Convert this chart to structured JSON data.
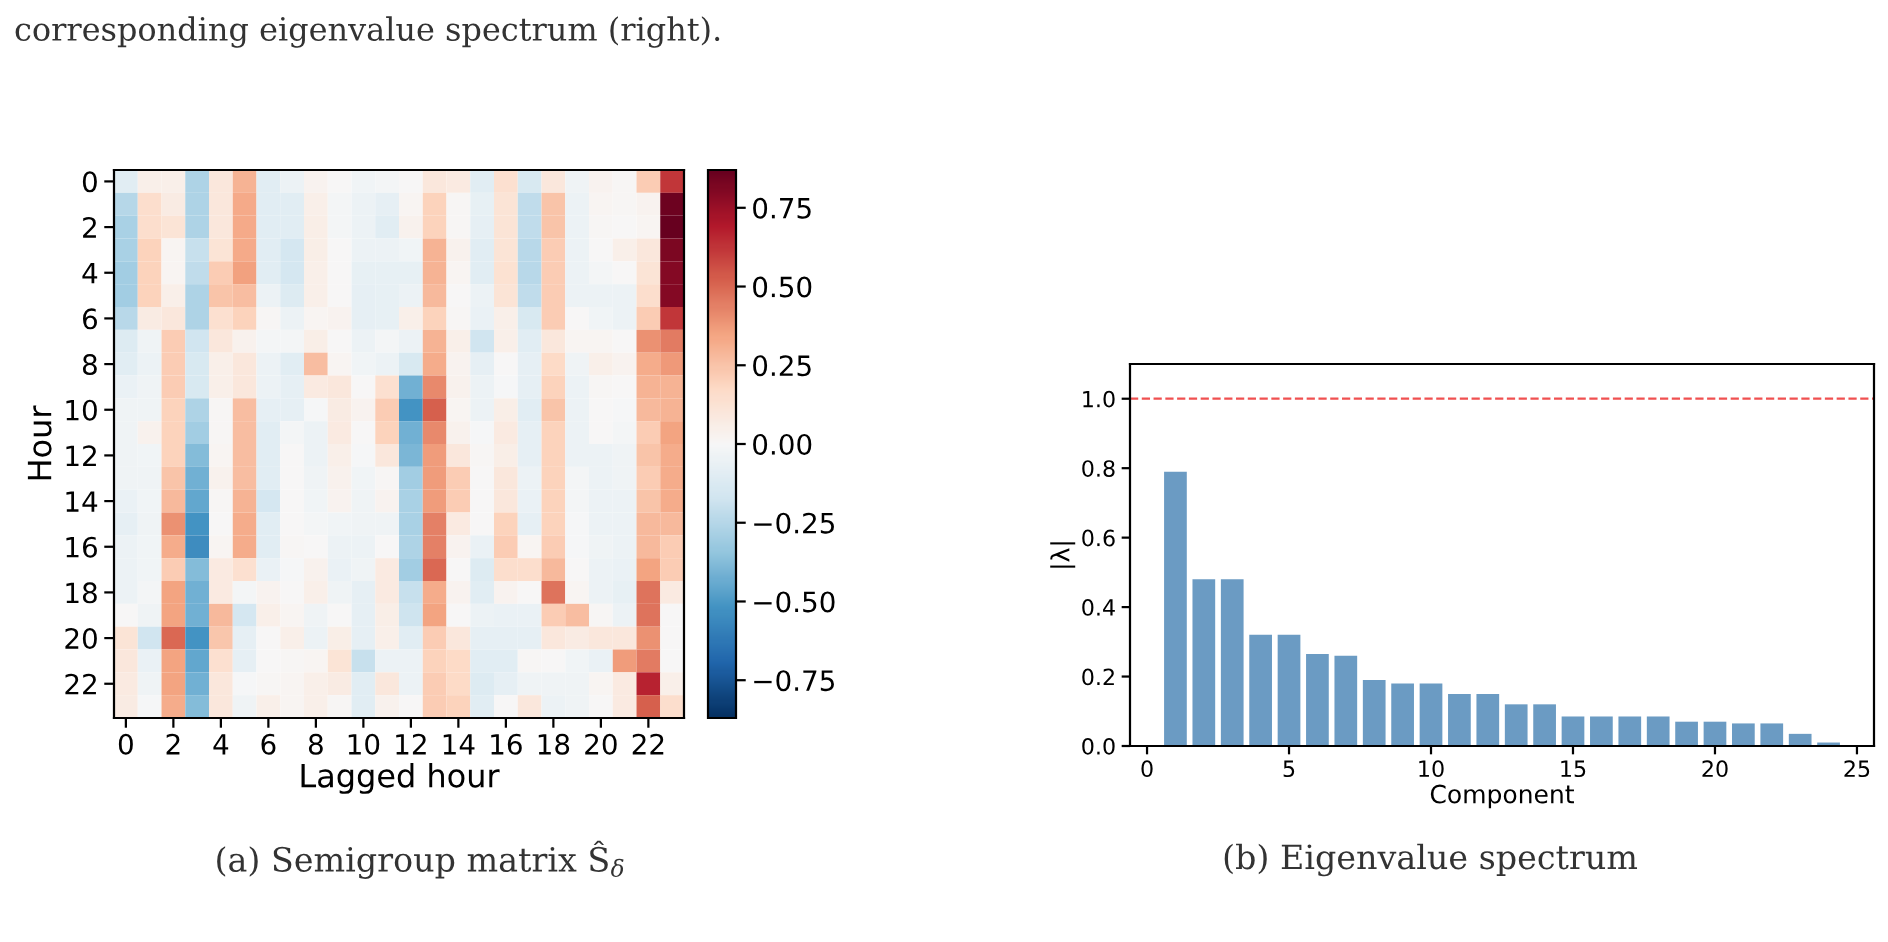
{
  "chart_data": [
    {
      "type": "heatmap",
      "xlabel": "Lagged hour",
      "ylabel": "Hour",
      "categories": [
        "0",
        null,
        "2",
        null,
        "4",
        null,
        "6",
        null,
        "8",
        null,
        "10",
        null,
        "12",
        null,
        "14",
        null,
        "16",
        null,
        "18",
        null,
        "20",
        null,
        "22",
        null
      ],
      "y_categories": [
        "0",
        null,
        "2",
        null,
        "4",
        null,
        "6",
        null,
        "8",
        null,
        "10",
        null,
        "12",
        null,
        "14",
        null,
        "16",
        null,
        "18",
        null,
        "20",
        null,
        "22",
        null
      ],
      "cells": [
        [
          -0.1,
          0.05,
          0.05,
          -0.27,
          0.1,
          0.3,
          -0.1,
          -0.05,
          0.03,
          0,
          -0.03,
          -0.02,
          0,
          0.1,
          0.08,
          -0.1,
          0.14,
          -0.14,
          0.1,
          -0.04,
          0.03,
          0.01,
          0.22,
          0.62
        ],
        [
          -0.25,
          0.15,
          0.07,
          -0.27,
          0.1,
          0.33,
          -0.1,
          -0.1,
          0.05,
          -0.02,
          -0.05,
          -0.08,
          0.02,
          0.2,
          0.01,
          -0.07,
          0.12,
          -0.22,
          0.25,
          -0.05,
          0.02,
          0.01,
          0.03,
          0.85
        ],
        [
          -0.28,
          0.15,
          0.12,
          -0.27,
          0.1,
          0.33,
          -0.1,
          -0.1,
          0.06,
          -0.02,
          -0.05,
          -0.1,
          0.04,
          0.2,
          0.01,
          -0.08,
          0.12,
          -0.22,
          0.25,
          -0.05,
          0.01,
          0,
          0.02,
          0.87
        ],
        [
          -0.28,
          0.2,
          0.02,
          -0.2,
          0.12,
          0.33,
          -0.1,
          -0.15,
          0.06,
          0,
          -0.05,
          -0.05,
          -0.03,
          0.3,
          0.04,
          -0.1,
          0.12,
          -0.24,
          0.22,
          -0.05,
          0,
          0.05,
          0.1,
          0.82
        ],
        [
          -0.3,
          0.2,
          0.02,
          -0.22,
          0.22,
          0.36,
          -0.1,
          -0.15,
          0.05,
          0,
          -0.07,
          -0.07,
          -0.07,
          0.3,
          0.02,
          -0.1,
          0.13,
          -0.24,
          0.22,
          -0.05,
          -0.02,
          0,
          0.12,
          0.8
        ],
        [
          -0.3,
          0.2,
          0.05,
          -0.27,
          0.25,
          0.27,
          -0.05,
          -0.12,
          0.05,
          0,
          -0.08,
          -0.07,
          -0.05,
          0.28,
          0,
          -0.05,
          0.12,
          -0.22,
          0.22,
          -0.05,
          -0.05,
          -0.05,
          0.15,
          0.8
        ],
        [
          -0.24,
          0.07,
          0.1,
          -0.27,
          0.14,
          0.2,
          0.01,
          -0.05,
          0.02,
          0.03,
          -0.08,
          -0.07,
          0.05,
          0.2,
          0.01,
          -0.06,
          0.05,
          -0.14,
          0.22,
          0,
          -0.03,
          -0.05,
          0.22,
          0.62
        ],
        [
          -0.12,
          -0.04,
          0.22,
          -0.17,
          0.1,
          0.04,
          -0.02,
          -0.02,
          0.06,
          0,
          -0.05,
          -0.02,
          -0.05,
          0.3,
          0.05,
          -0.17,
          0.05,
          -0.1,
          0.1,
          0.02,
          0.02,
          0,
          0.4,
          0.45
        ],
        [
          -0.1,
          -0.05,
          0.22,
          -0.14,
          0.05,
          0.1,
          -0.05,
          -0.1,
          0.27,
          0.02,
          -0.03,
          -0.05,
          -0.14,
          0.32,
          0.03,
          -0.08,
          0,
          -0.08,
          0.17,
          -0.04,
          0.05,
          0.03,
          0.32,
          0.38
        ],
        [
          -0.06,
          -0.04,
          0.22,
          -0.14,
          0.05,
          0.1,
          -0.05,
          -0.08,
          0.08,
          0.1,
          0,
          0.14,
          -0.42,
          0.42,
          0.04,
          -0.05,
          -0.01,
          -0.08,
          0.2,
          -0.05,
          0.01,
          0,
          0.3,
          0.3
        ],
        [
          -0.04,
          -0.04,
          0.2,
          -0.27,
          0.01,
          0.27,
          -0.08,
          -0.08,
          -0.01,
          0.07,
          0.03,
          0.22,
          -0.52,
          0.52,
          0.02,
          -0.05,
          0.06,
          -0.1,
          0.25,
          -0.05,
          0,
          -0.01,
          0.28,
          0.3
        ],
        [
          -0.04,
          0.04,
          0.2,
          -0.3,
          0.01,
          0.27,
          -0.1,
          -0.02,
          -0.05,
          0.08,
          0,
          0.2,
          -0.42,
          0.42,
          0.04,
          -0.01,
          0.08,
          -0.08,
          0.2,
          -0.05,
          0,
          -0.02,
          0.22,
          0.35
        ],
        [
          -0.04,
          -0.03,
          0.2,
          -0.38,
          0.02,
          0.27,
          -0.1,
          0,
          -0.05,
          0.05,
          -0.01,
          0.1,
          -0.4,
          0.37,
          0.1,
          0.01,
          0.06,
          -0.08,
          0.2,
          -0.05,
          -0.05,
          -0.04,
          0.25,
          0.32
        ],
        [
          -0.04,
          -0.04,
          0.25,
          -0.42,
          0.04,
          0.27,
          -0.1,
          0,
          -0.04,
          0.04,
          -0.03,
          0.01,
          -0.3,
          0.37,
          0.22,
          0,
          0.1,
          -0.05,
          0.2,
          -0.02,
          -0.05,
          -0.04,
          0.22,
          0.32
        ],
        [
          -0.06,
          -0.03,
          0.28,
          -0.45,
          0.01,
          0.3,
          -0.15,
          0,
          -0.03,
          0.03,
          -0.04,
          0.03,
          -0.28,
          0.37,
          0.22,
          0,
          0.1,
          -0.06,
          0.2,
          -0.02,
          -0.05,
          -0.05,
          0.25,
          0.32
        ],
        [
          -0.08,
          -0.04,
          0.4,
          -0.52,
          0,
          0.32,
          -0.1,
          0,
          -0.02,
          -0.03,
          -0.04,
          -0.04,
          -0.28,
          0.44,
          0.08,
          0,
          0.2,
          -0.08,
          0.2,
          -0.01,
          -0.05,
          -0.05,
          0.28,
          0.28
        ],
        [
          -0.05,
          -0.03,
          0.32,
          -0.55,
          0.02,
          0.32,
          -0.1,
          0.01,
          0,
          -0.05,
          -0.05,
          0,
          -0.27,
          0.44,
          0.03,
          -0.06,
          0.22,
          0.02,
          0.22,
          -0.01,
          -0.04,
          -0.05,
          0.28,
          0.22
        ],
        [
          -0.05,
          -0.03,
          0.22,
          -0.38,
          0.08,
          0.14,
          -0.06,
          -0.01,
          0.04,
          -0.06,
          -0.04,
          0.08,
          -0.3,
          0.5,
          0,
          -0.12,
          0.15,
          0.15,
          0.28,
          0,
          -0.05,
          -0.06,
          0.35,
          0.22
        ],
        [
          -0.05,
          -0.02,
          0.35,
          -0.42,
          0.08,
          -0.02,
          0.03,
          0,
          0.05,
          -0.04,
          -0.08,
          0.08,
          -0.2,
          0.32,
          0.03,
          -0.1,
          0.03,
          0,
          0.47,
          0.02,
          -0.05,
          -0.07,
          0.47,
          0.08
        ],
        [
          0,
          -0.04,
          0.35,
          -0.42,
          0.28,
          -0.15,
          0.05,
          0.02,
          -0.04,
          0,
          -0.08,
          0.06,
          -0.18,
          0.35,
          0,
          -0.05,
          -0.06,
          -0.06,
          0.22,
          0.27,
          0.01,
          -0.05,
          0.47,
          0
        ],
        [
          0.12,
          -0.17,
          0.5,
          -0.52,
          0.24,
          -0.08,
          0,
          0.05,
          -0.05,
          0.06,
          -0.08,
          0.05,
          -0.1,
          0.22,
          0.1,
          -0.08,
          -0.08,
          -0.08,
          0.1,
          0.07,
          0.1,
          0.1,
          0.4,
          0
        ],
        [
          0.1,
          -0.06,
          0.35,
          -0.45,
          0.14,
          -0.08,
          0,
          0.01,
          0.02,
          0.12,
          -0.2,
          -0.05,
          -0.05,
          0.2,
          0.17,
          -0.1,
          -0.1,
          0.01,
          0,
          -0.03,
          -0.06,
          0.37,
          0.45,
          0
        ],
        [
          0.08,
          -0.04,
          0.35,
          -0.42,
          0.1,
          -0.01,
          0.01,
          0.02,
          0.05,
          0.07,
          -0.1,
          0.1,
          -0.05,
          0.22,
          0.17,
          -0.12,
          -0.08,
          -0.04,
          -0.04,
          -0.04,
          0.02,
          0.08,
          0.67,
          0.05
        ],
        [
          0.07,
          -0.01,
          0.32,
          -0.38,
          0.1,
          -0.04,
          0.05,
          0.02,
          0.05,
          0.01,
          -0.1,
          0.04,
          0,
          0.22,
          0.2,
          -0.1,
          0,
          0.1,
          -0.05,
          -0.04,
          0,
          0.08,
          0.52,
          0.15
        ]
      ],
      "clim": [
        -0.87,
        0.87
      ],
      "cticks": [
        {
          "value": -0.75,
          "label": "−0.75"
        },
        {
          "value": -0.5,
          "label": "−0.50"
        },
        {
          "value": -0.25,
          "label": "−0.25"
        },
        {
          "value": 0,
          "label": "0.00"
        },
        {
          "value": 0.25,
          "label": "0.25"
        },
        {
          "value": 0.5,
          "label": "0.50"
        },
        {
          "value": 0.75,
          "label": "0.75"
        }
      ],
      "annotations": [
        "corresponding eigenvalue spectrum (right).",
        "(a) Semigroup matrix Ŝ$_{δ}$"
      ]
    },
    {
      "type": "bar",
      "xlabel": "Component",
      "ylabel": "|λ|",
      "x": [
        1,
        2,
        3,
        4,
        5,
        6,
        7,
        8,
        9,
        10,
        11,
        12,
        13,
        14,
        15,
        16,
        17,
        18,
        19,
        20,
        21,
        22,
        23,
        24
      ],
      "values": [
        0.79,
        0.48,
        0.48,
        0.32,
        0.32,
        0.265,
        0.26,
        0.19,
        0.18,
        0.18,
        0.15,
        0.15,
        0.12,
        0.12,
        0.085,
        0.085,
        0.085,
        0.085,
        0.07,
        0.07,
        0.065,
        0.065,
        0.035,
        0.01
      ],
      "color": "#6b9bc3",
      "xlim": [
        -0.6,
        25.6
      ],
      "xticks": [
        0,
        5,
        10,
        15,
        20,
        25
      ],
      "ylim": [
        0,
        1.1
      ],
      "yticks": [
        {
          "value": 0,
          "label": "0.0"
        },
        0.2,
        0.4,
        0.6,
        0.8,
        {
          "value": 1,
          "label": "1.0"
        }
      ],
      "ref_lines": [
        {
          "axis": "y",
          "value": 1,
          "color": "#f05050",
          "line_style": "dashed"
        }
      ],
      "annotations": [
        "(b) Eigenvalue spectrum"
      ]
    }
  ]
}
